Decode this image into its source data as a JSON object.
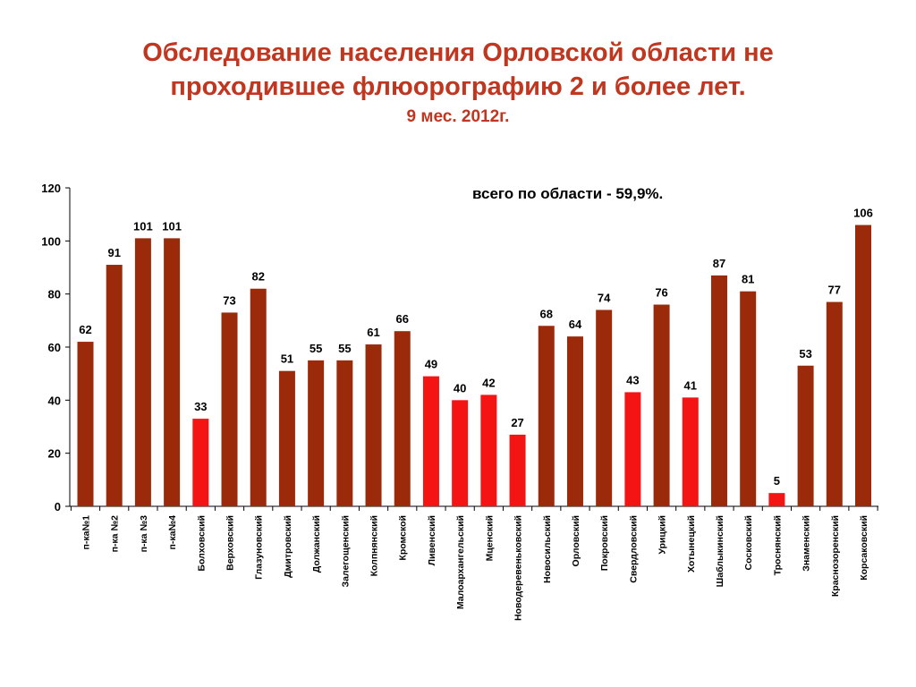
{
  "title": {
    "line1": "Обследование населения Орловской области не",
    "line2": "проходившее флюорографию 2 и более лет.",
    "subtitle": "9 мес. 2012г."
  },
  "annotation": "всего по области - 59,9%.",
  "colors": {
    "normal": "#9b2a0b",
    "highlight": "#f41414",
    "title": "#c0361f"
  },
  "chart_data": {
    "type": "bar",
    "categories": [
      "п-ка№1",
      "п-ка №2",
      "п-ка №3",
      "п-ка№4",
      "Болховский",
      "Верховский",
      "Глазуновский",
      "Дмитровский",
      "Должанский",
      "Залегощенский",
      "Колпнянский",
      "Кромской",
      "Ливенский",
      "Малоархангельский",
      "Мценский",
      "Новодеревеньковский",
      "Новосильский",
      "Орловский",
      "Покровский",
      "Свердловский",
      "Урицкий",
      "Хотынецкий",
      "Шаблыкинский",
      "Сосковский",
      "Троснянский",
      "Знаменский",
      "Краснозоренский",
      "Корсаковский"
    ],
    "values": [
      62,
      91,
      101,
      101,
      33,
      73,
      82,
      51,
      55,
      55,
      61,
      66,
      49,
      40,
      42,
      27,
      68,
      64,
      74,
      43,
      76,
      41,
      87,
      81,
      5,
      53,
      77,
      106
    ],
    "highlighted": [
      false,
      false,
      false,
      false,
      true,
      false,
      false,
      false,
      false,
      false,
      false,
      false,
      true,
      true,
      true,
      true,
      false,
      false,
      false,
      true,
      false,
      true,
      false,
      false,
      true,
      false,
      false,
      false
    ],
    "ylim": [
      0,
      120
    ],
    "yticks": [
      0,
      20,
      40,
      60,
      80,
      100,
      120
    ],
    "grid": false,
    "legend": "none"
  }
}
